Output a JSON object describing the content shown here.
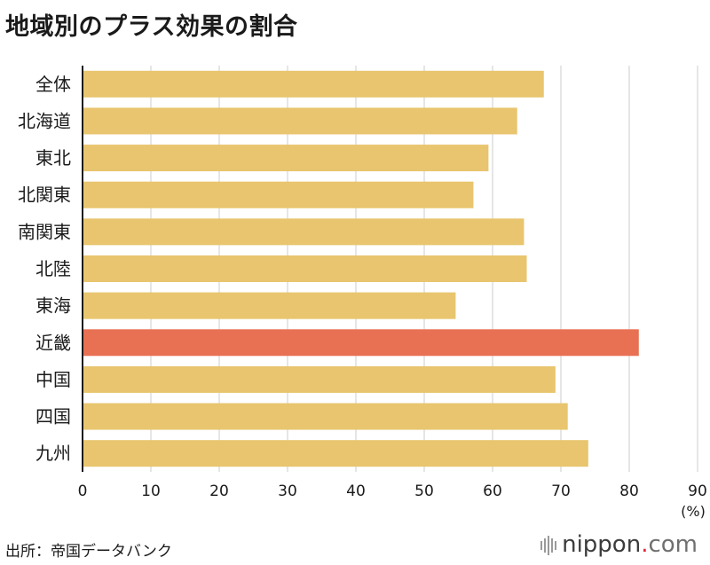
{
  "title": "地域別のプラス効果の割合",
  "source": "出所：帝国データバンク",
  "logo": {
    "name": "nippon",
    "dot": ".",
    "tld": "com"
  },
  "chart_data": {
    "type": "bar",
    "orientation": "horizontal",
    "categories": [
      "全体",
      "北海道",
      "東北",
      "北関東",
      "南関東",
      "北陸",
      "東海",
      "近畿",
      "中国",
      "四国",
      "九州"
    ],
    "values": [
      67.5,
      63.6,
      59.4,
      57.2,
      64.6,
      65.0,
      54.6,
      81.4,
      69.2,
      71.0,
      74.0
    ],
    "highlight": "近畿",
    "colors": {
      "bar": "#E8C56E",
      "highlight": "#E87053",
      "grid": "#cccccc",
      "axis": "#1a1a1a"
    },
    "xlim": [
      0,
      90
    ],
    "xticks": [
      0,
      10,
      20,
      30,
      40,
      50,
      60,
      70,
      80,
      90
    ],
    "xunit": "(%)",
    "grid": true
  }
}
